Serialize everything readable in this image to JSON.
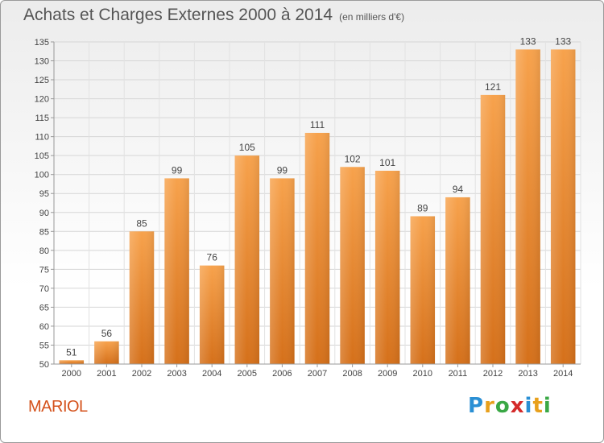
{
  "header": {
    "title": "Achats et Charges Externes 2000 à 2014",
    "unit": "(en milliers d'€)"
  },
  "footer": {
    "town": "MARIOL",
    "logo_letters": [
      "P",
      "r",
      "o",
      "x",
      "i",
      "t",
      "i"
    ],
    "logo_colors": [
      "#2a8fd4",
      "#e8a01c",
      "#3aa845",
      "#d42a2a",
      "#2a8fd4",
      "#e8a01c",
      "#3aa845"
    ]
  },
  "chart_data": {
    "type": "bar",
    "title": "Achats et Charges Externes 2000 à 2014",
    "categories": [
      "2000",
      "2001",
      "2002",
      "2003",
      "2004",
      "2005",
      "2006",
      "2007",
      "2008",
      "2009",
      "2010",
      "2011",
      "2012",
      "2013",
      "2014"
    ],
    "values": [
      51,
      56,
      85,
      99,
      76,
      105,
      99,
      111,
      102,
      101,
      89,
      94,
      121,
      133,
      133
    ],
    "ylim": [
      50,
      135
    ],
    "yticks": [
      50,
      55,
      60,
      65,
      70,
      75,
      80,
      85,
      90,
      95,
      100,
      105,
      110,
      115,
      120,
      125,
      130,
      135
    ],
    "grid": true,
    "bar_color": "#f0902e"
  }
}
